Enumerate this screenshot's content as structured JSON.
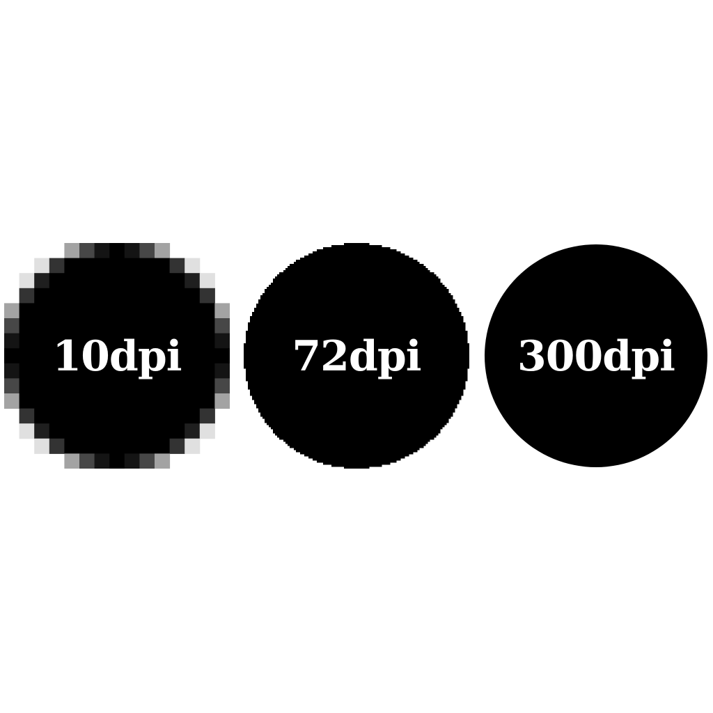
{
  "figures": [
    {
      "label": "10dpi",
      "dpi": 10
    },
    {
      "label": "72dpi",
      "dpi": 72
    },
    {
      "label": "300dpi",
      "dpi": 300
    }
  ],
  "colors": {
    "circle": "#000000",
    "label": "#ffffff",
    "background": "#ffffff"
  }
}
